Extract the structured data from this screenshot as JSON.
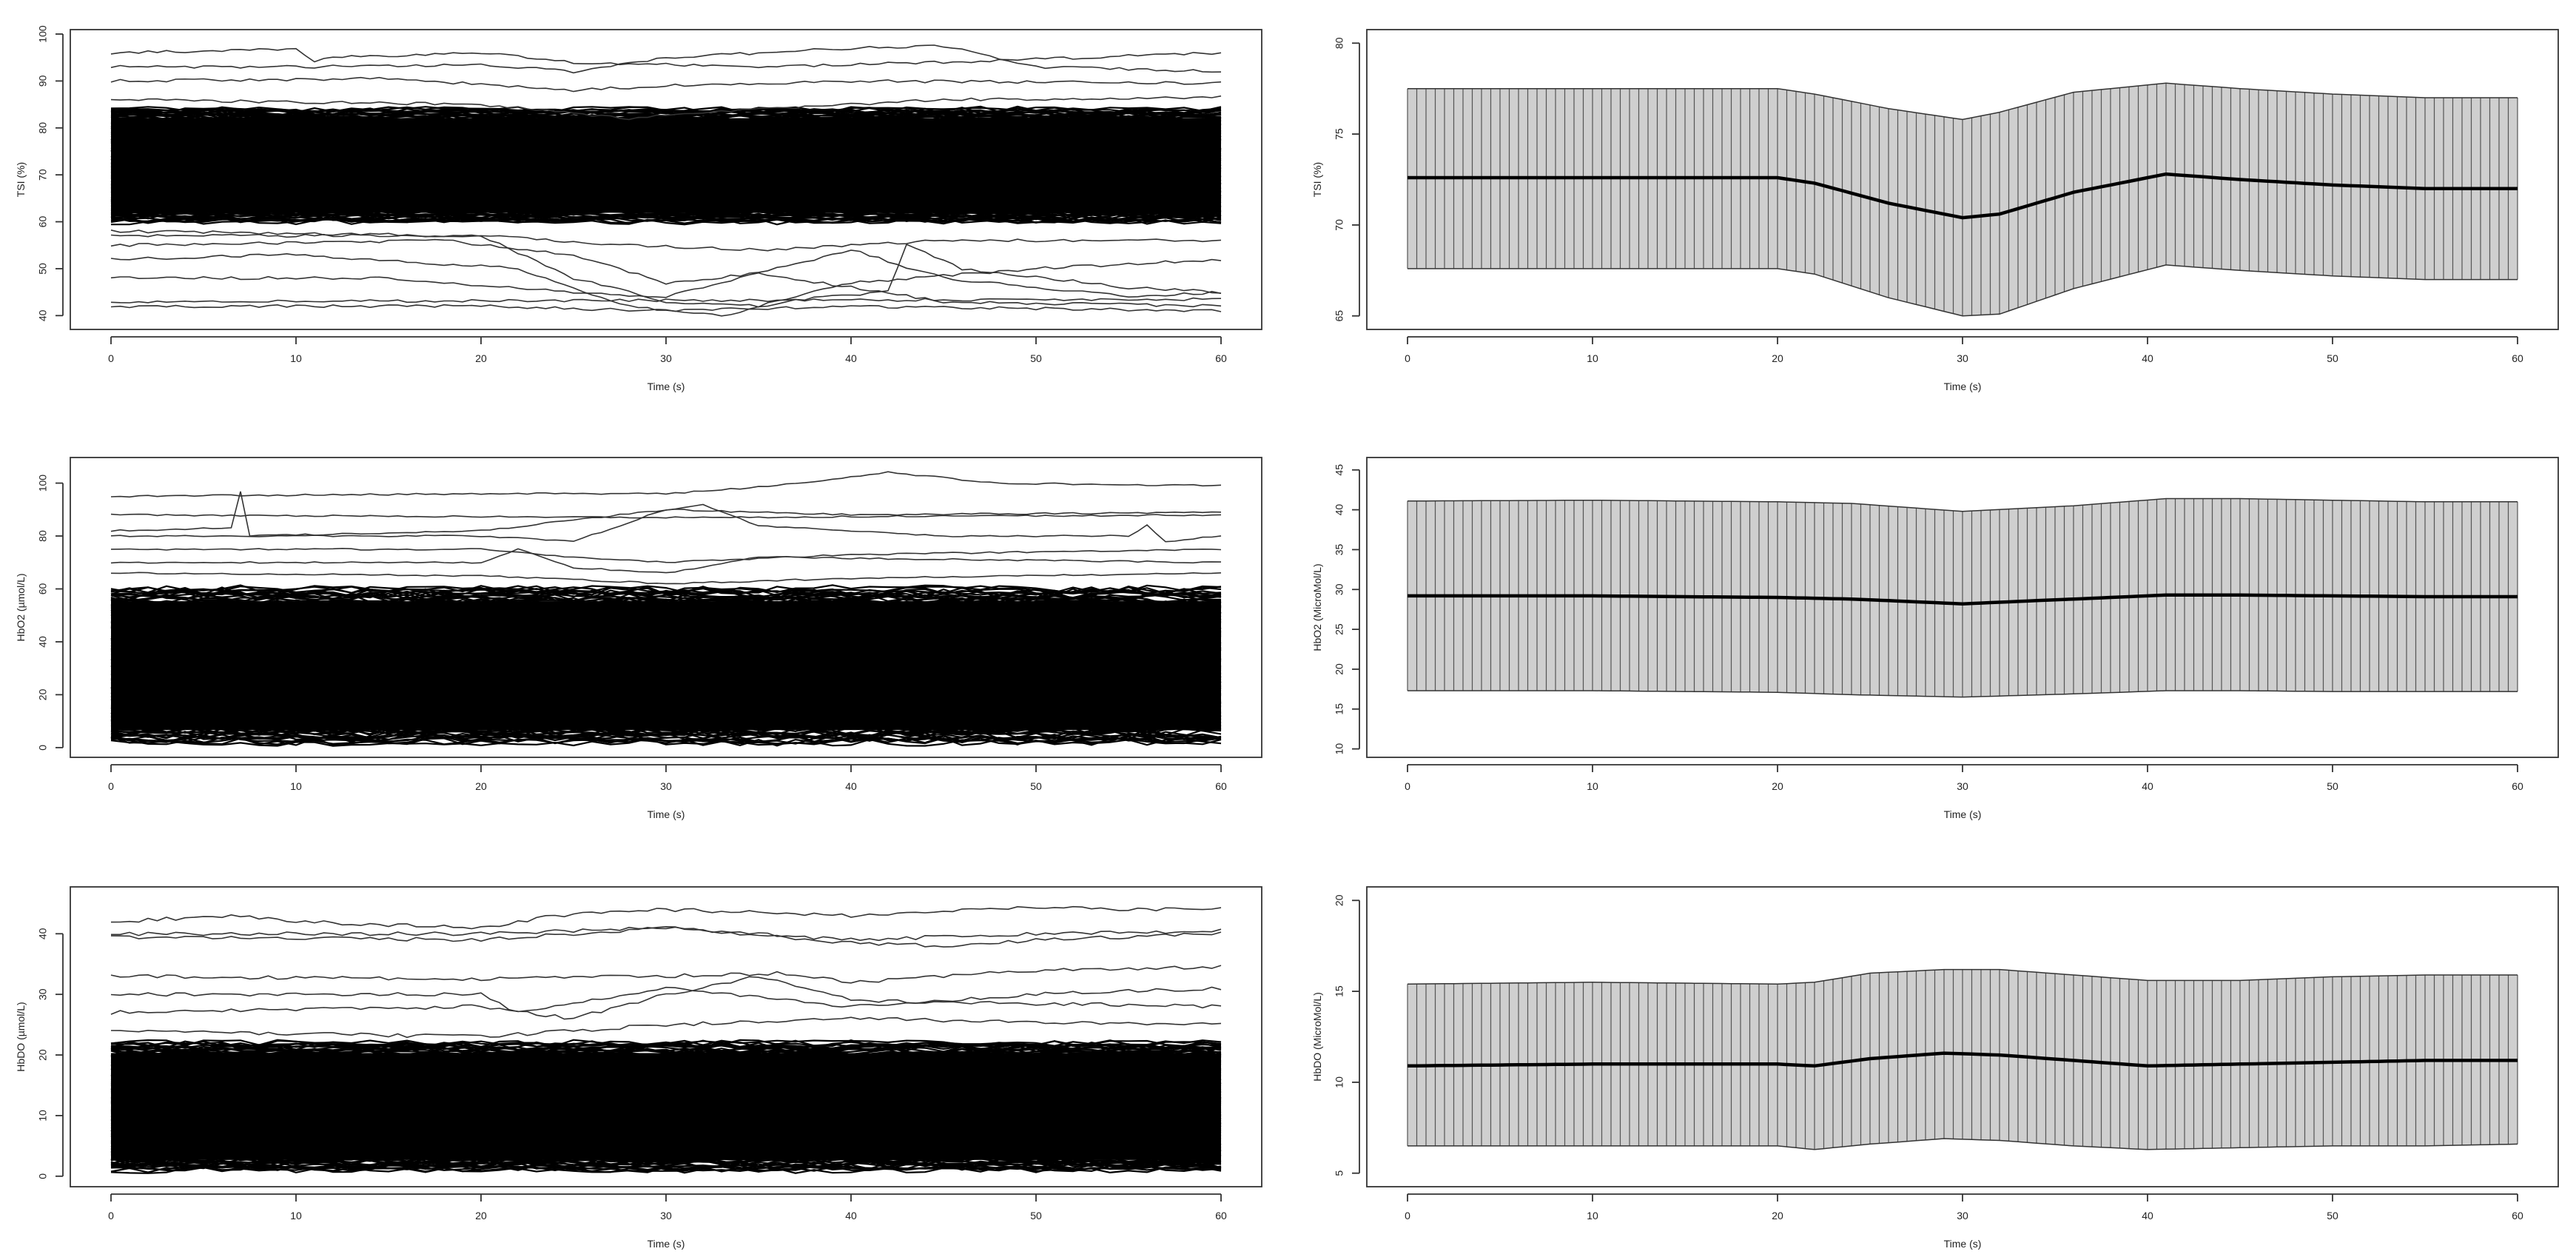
{
  "chart_data": [
    {
      "type": "line",
      "panel": "left-1",
      "ylabel": "TSI (%)",
      "xlabel": "Time (s)",
      "xlim": [
        0,
        60
      ],
      "ylim": [
        38,
        100
      ],
      "xticks": [
        "0",
        "10",
        "20",
        "30",
        "40",
        "50",
        "60"
      ],
      "yticks": [
        "40",
        "50",
        "60",
        "70",
        "80",
        "90",
        "100"
      ],
      "band_bottom": 60,
      "band_top": 84,
      "outlier_lines": [
        {
          "x": [
            0,
            7,
            10,
            11,
            12,
            20,
            25,
            35,
            45,
            60
          ],
          "y": [
            96,
            96.5,
            97,
            94,
            95,
            96,
            94,
            93,
            94,
            96
          ]
        },
        {
          "x": [
            0,
            10,
            20,
            25,
            30,
            40,
            45,
            50,
            60
          ],
          "y": [
            93,
            93,
            93.5,
            92,
            95,
            97,
            97.5,
            93,
            92
          ]
        },
        {
          "x": [
            0,
            15,
            25,
            30,
            40,
            60
          ],
          "y": [
            90,
            90.5,
            88,
            89,
            90,
            89.5
          ]
        },
        {
          "x": [
            0,
            20,
            25,
            30,
            35,
            40,
            50,
            60
          ],
          "y": [
            58,
            57,
            48,
            43,
            42,
            47,
            50,
            52
          ]
        },
        {
          "x": [
            0,
            10,
            22,
            28,
            33,
            38,
            42,
            43,
            46,
            55,
            60
          ],
          "y": [
            52,
            53,
            50,
            42,
            40,
            44,
            45,
            55,
            50,
            46,
            45
          ]
        },
        {
          "x": [
            0,
            15,
            25,
            30,
            35,
            45,
            60
          ],
          "y": [
            48,
            48,
            45,
            44,
            49,
            43,
            42
          ]
        },
        {
          "x": [
            0,
            60
          ],
          "y": [
            43,
            43.5
          ]
        },
        {
          "x": [
            0,
            20,
            30,
            40,
            60
          ],
          "y": [
            42,
            42,
            41,
            42,
            41
          ]
        },
        {
          "x": [
            0,
            18,
            25,
            30,
            35,
            40,
            45,
            55,
            60
          ],
          "y": [
            55,
            56,
            53,
            47,
            49,
            54,
            48,
            44,
            45
          ]
        },
        {
          "x": [
            0,
            20,
            28,
            35,
            45,
            60
          ],
          "y": [
            86,
            85,
            82,
            84,
            86,
            86.5
          ]
        },
        {
          "x": [
            0,
            20,
            28,
            35,
            45,
            60
          ],
          "y": [
            57,
            57,
            55,
            54,
            56,
            56
          ]
        }
      ]
    },
    {
      "type": "area",
      "panel": "right-1",
      "ylabel": "TSI (%)",
      "xlabel": "Time (s)",
      "xlim": [
        0,
        60
      ],
      "ylim": [
        64.5,
        80.5
      ],
      "xticks": [
        "0",
        "10",
        "20",
        "30",
        "40",
        "50",
        "60"
      ],
      "yticks": [
        "65",
        "70",
        "75",
        "80"
      ],
      "time": [
        0,
        10,
        20,
        22,
        26,
        30,
        32,
        36,
        41,
        45,
        50,
        55,
        60
      ],
      "mean": [
        72.6,
        72.6,
        72.6,
        72.3,
        71.2,
        70.4,
        70.6,
        71.8,
        72.8,
        72.5,
        72.2,
        72.0,
        72.0
      ],
      "upper": [
        77.5,
        77.5,
        77.5,
        77.2,
        76.4,
        75.8,
        76.2,
        77.3,
        77.8,
        77.5,
        77.2,
        77.0,
        77.0
      ],
      "lower": [
        67.6,
        67.6,
        67.6,
        67.3,
        66.0,
        65.0,
        65.1,
        66.5,
        67.8,
        67.5,
        67.2,
        67.0,
        67.0
      ]
    },
    {
      "type": "line",
      "panel": "left-2",
      "ylabel": "HbO2 (µmol/L)",
      "xlabel": "Time (s)",
      "xlim": [
        0,
        60
      ],
      "ylim": [
        -2,
        108
      ],
      "xticks": [
        "0",
        "10",
        "20",
        "30",
        "40",
        "50",
        "60"
      ],
      "yticks": [
        "0",
        "20",
        "40",
        "60",
        "80",
        "100"
      ],
      "band_bottom": 2,
      "band_top": 60,
      "outlier_lines": [
        {
          "x": [
            0,
            20,
            30,
            36,
            42,
            48,
            60
          ],
          "y": [
            95,
            96,
            96,
            99,
            104,
            100,
            99
          ]
        },
        {
          "x": [
            0,
            6.5,
            7,
            7.5,
            20,
            30,
            40,
            60
          ],
          "y": [
            82,
            83,
            97,
            80,
            82,
            90,
            88,
            89
          ]
        },
        {
          "x": [
            0,
            15,
            20,
            25,
            30,
            32,
            35,
            45,
            55,
            56,
            57,
            60
          ],
          "y": [
            80,
            80,
            80,
            78,
            90,
            92,
            84,
            80,
            80,
            84,
            78,
            80
          ]
        },
        {
          "x": [
            0,
            20,
            25,
            30,
            40,
            60
          ],
          "y": [
            75,
            75,
            72,
            70,
            73,
            75
          ]
        },
        {
          "x": [
            0,
            20,
            22,
            25,
            30,
            35,
            60
          ],
          "y": [
            70,
            70,
            75,
            68,
            66,
            72,
            70
          ]
        },
        {
          "x": [
            0,
            30,
            60
          ],
          "y": [
            88,
            87,
            88
          ]
        },
        {
          "x": [
            0,
            20,
            30,
            40,
            60
          ],
          "y": [
            66,
            65,
            62,
            64,
            66
          ]
        }
      ]
    },
    {
      "type": "area",
      "panel": "right-2",
      "ylabel": "HbO2 (MicroMol/L)",
      "xlabel": "Time (s)",
      "xlim": [
        0,
        60
      ],
      "ylim": [
        9.5,
        46
      ],
      "xticks": [
        "0",
        "10",
        "20",
        "30",
        "40",
        "50",
        "60"
      ],
      "yticks": [
        "10",
        "15",
        "20",
        "25",
        "30",
        "35",
        "40",
        "45"
      ],
      "time": [
        0,
        10,
        20,
        24,
        30,
        36,
        41,
        45,
        50,
        55,
        60
      ],
      "mean": [
        29.2,
        29.2,
        29.0,
        28.8,
        28.2,
        28.8,
        29.3,
        29.3,
        29.2,
        29.1,
        29.1
      ],
      "upper": [
        41.1,
        41.2,
        41.0,
        40.8,
        39.8,
        40.5,
        41.4,
        41.4,
        41.2,
        41.0,
        41.0
      ],
      "lower": [
        17.3,
        17.3,
        17.1,
        16.8,
        16.5,
        16.9,
        17.3,
        17.3,
        17.2,
        17.2,
        17.2
      ]
    },
    {
      "type": "line",
      "panel": "left-3",
      "ylabel": "HbDO (µmol/L)",
      "xlabel": "Time (s)",
      "xlim": [
        0,
        60
      ],
      "ylim": [
        -1,
        47
      ],
      "xticks": [
        "0",
        "10",
        "20",
        "30",
        "40",
        "50",
        "60"
      ],
      "yticks": [
        "0",
        "10",
        "20",
        "30",
        "40"
      ],
      "band_bottom": 1,
      "band_top": 22,
      "outlier_lines": [
        {
          "x": [
            0,
            7,
            10,
            20,
            24,
            30,
            40,
            46,
            50,
            55,
            60
          ],
          "y": [
            42,
            43,
            42,
            41,
            43,
            44,
            43,
            44,
            44.5,
            44,
            44
          ]
        },
        {
          "x": [
            0,
            20,
            30,
            40,
            50,
            60
          ],
          "y": [
            40,
            40,
            41,
            39,
            40,
            40.5
          ]
        },
        {
          "x": [
            0,
            20,
            30,
            40,
            45,
            50,
            60
          ],
          "y": [
            39.5,
            39,
            41,
            38.5,
            38,
            39,
            40
          ]
        },
        {
          "x": [
            0,
            20,
            30,
            36,
            40,
            50,
            60
          ],
          "y": [
            33,
            32.5,
            33,
            33.5,
            32,
            34,
            34.5
          ]
        },
        {
          "x": [
            0,
            20,
            22,
            26,
            30,
            40,
            50,
            60
          ],
          "y": [
            30,
            30,
            27,
            29,
            31,
            28,
            30,
            31
          ]
        },
        {
          "x": [
            0,
            20,
            25,
            30,
            35,
            40,
            60
          ],
          "y": [
            27,
            28,
            26,
            30,
            33,
            29,
            28
          ]
        },
        {
          "x": [
            0,
            20,
            30,
            40,
            60
          ],
          "y": [
            24,
            23,
            25,
            26,
            25
          ]
        }
      ]
    },
    {
      "type": "area",
      "panel": "right-3",
      "ylabel": "HbDO (MicroMol/L)",
      "xlabel": "Time (s)",
      "xlim": [
        0,
        60
      ],
      "ylim": [
        4.5,
        20.5
      ],
      "xticks": [
        "0",
        "10",
        "20",
        "30",
        "40",
        "50",
        "60"
      ],
      "yticks": [
        "5",
        "10",
        "15",
        "20"
      ],
      "time": [
        0,
        10,
        20,
        22,
        25,
        29,
        32,
        36,
        40,
        45,
        50,
        55,
        60
      ],
      "mean": [
        10.9,
        11.0,
        11.0,
        10.9,
        11.3,
        11.6,
        11.5,
        11.2,
        10.9,
        11.0,
        11.1,
        11.2,
        11.2
      ],
      "upper": [
        15.4,
        15.5,
        15.4,
        15.5,
        16.0,
        16.2,
        16.2,
        15.9,
        15.6,
        15.6,
        15.8,
        15.9,
        15.9
      ],
      "lower": [
        6.5,
        6.5,
        6.5,
        6.3,
        6.6,
        6.9,
        6.8,
        6.5,
        6.3,
        6.4,
        6.5,
        6.5,
        6.6
      ]
    }
  ]
}
